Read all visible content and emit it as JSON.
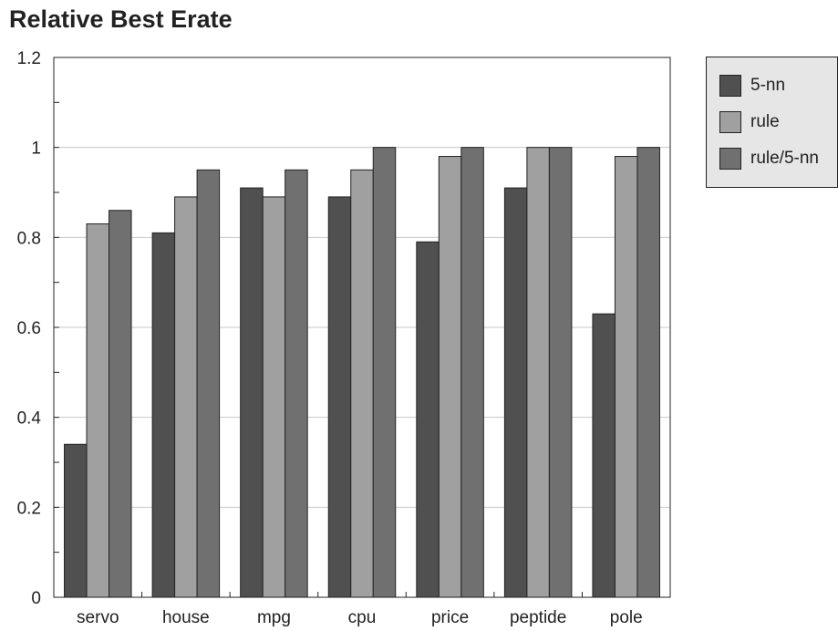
{
  "chart_data": {
    "type": "bar",
    "title": "Relative Best Erate",
    "xlabel": "",
    "ylabel": "",
    "categories": [
      "servo",
      "house",
      "mpg",
      "cpu",
      "price",
      "peptide",
      "pole"
    ],
    "series": [
      {
        "name": "5-nn",
        "color": "#505050",
        "values": [
          0.34,
          0.81,
          0.91,
          0.89,
          0.79,
          0.91,
          0.63
        ]
      },
      {
        "name": "rule",
        "color": "#a0a0a0",
        "values": [
          0.83,
          0.89,
          0.89,
          0.95,
          0.98,
          1.0,
          0.98
        ]
      },
      {
        "name": "rule/5-nn",
        "color": "#707070",
        "values": [
          0.86,
          0.95,
          0.95,
          1.0,
          1.0,
          1.0,
          1.0
        ]
      }
    ],
    "ylim": [
      0,
      1.2
    ],
    "yticks": [
      "0",
      "0.2",
      "0.4",
      "0.6",
      "0.8",
      "1",
      "1.2"
    ],
    "grid": true,
    "legend_position": "right"
  }
}
